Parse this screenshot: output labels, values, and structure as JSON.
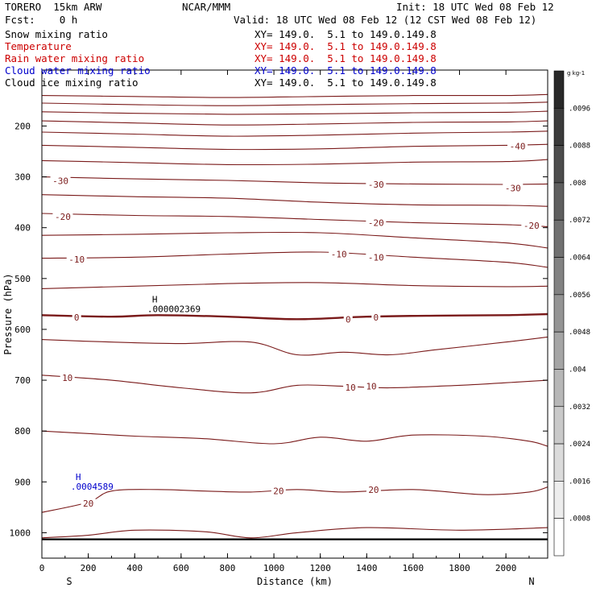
{
  "header": {
    "model": "TORERO  15km ARW",
    "center": "NCAR/MMM",
    "init": "Init: 18 UTC Wed 08 Feb 12",
    "fcst": "Fcst:    0 h",
    "valid": "Valid: 18 UTC Wed 08 Feb 12 (12 CST Wed 08 Feb 12)"
  },
  "fields": [
    {
      "name": "Snow mixing ratio",
      "color": "#000000",
      "xy": "XY= 149.0.  5.1 to 149.0.149.8"
    },
    {
      "name": "Temperature",
      "color": "#cc0000",
      "xy": "XY= 149.0.  5.1 to 149.0.149.8"
    },
    {
      "name": "Rain water mixing ratio",
      "color": "#cc0000",
      "xy": "XY= 149.0.  5.1 to 149.0.149.8"
    },
    {
      "name": "Cloud water mixing ratio",
      "color": "#0000cc",
      "xy": "XY= 149.0.  5.1 to 149.0.149.8"
    },
    {
      "name": "Cloud ice mixing ratio",
      "color": "#000000",
      "xy": "XY= 149.0.  5.1 to 149.0.149.8"
    }
  ],
  "chart_data": {
    "type": "contour",
    "xlabel": "Distance (km)",
    "ylabel": "Pressure (hPa)",
    "xlim": [
      0,
      2180
    ],
    "ylim": [
      1050,
      90
    ],
    "xticks": [
      0,
      200,
      400,
      600,
      800,
      1000,
      1200,
      1400,
      1600,
      1800,
      2000
    ],
    "yticks": [
      200,
      300,
      400,
      500,
      600,
      700,
      800,
      900,
      1000
    ],
    "x_left_label": "S",
    "x_right_label": "N",
    "contour_color": "#7a1a1a",
    "temperature_contours": [
      {
        "pts": [
          [
            0,
            140
          ],
          [
            400,
            142
          ],
          [
            800,
            144
          ],
          [
            1200,
            142
          ],
          [
            1600,
            140
          ],
          [
            2000,
            140
          ],
          [
            2180,
            138
          ]
        ]
      },
      {
        "pts": [
          [
            0,
            155
          ],
          [
            400,
            158
          ],
          [
            800,
            160
          ],
          [
            1200,
            158
          ],
          [
            1600,
            156
          ],
          [
            2000,
            155
          ],
          [
            2180,
            153
          ]
        ]
      },
      {
        "pts": [
          [
            0,
            172
          ],
          [
            400,
            175
          ],
          [
            800,
            177
          ],
          [
            1200,
            176
          ],
          [
            1600,
            174
          ],
          [
            2000,
            173
          ],
          [
            2180,
            171
          ]
        ]
      },
      {
        "pts": [
          [
            0,
            190
          ],
          [
            400,
            194
          ],
          [
            800,
            198
          ],
          [
            1200,
            196
          ],
          [
            1600,
            193
          ],
          [
            2000,
            192
          ],
          [
            2180,
            190
          ]
        ]
      },
      {
        "pts": [
          [
            0,
            212
          ],
          [
            400,
            216
          ],
          [
            800,
            220
          ],
          [
            1200,
            218
          ],
          [
            1600,
            214
          ],
          [
            2000,
            212
          ],
          [
            2180,
            210
          ]
        ]
      },
      {
        "pts": [
          [
            0,
            238
          ],
          [
            400,
            242
          ],
          [
            800,
            246
          ],
          [
            1200,
            245
          ],
          [
            1600,
            240
          ],
          [
            2000,
            238
          ],
          [
            2180,
            236
          ]
        ]
      },
      {
        "pts": [
          [
            0,
            268
          ],
          [
            400,
            272
          ],
          [
            800,
            276
          ],
          [
            1200,
            275
          ],
          [
            1600,
            271
          ],
          [
            2000,
            270
          ],
          [
            2180,
            266
          ]
        ]
      },
      {
        "pts": [
          [
            0,
            300
          ],
          [
            400,
            304
          ],
          [
            800,
            307
          ],
          [
            1200,
            312
          ],
          [
            1600,
            314
          ],
          [
            2000,
            315
          ],
          [
            2180,
            314
          ]
        ]
      },
      {
        "pts": [
          [
            0,
            335
          ],
          [
            400,
            339
          ],
          [
            800,
            342
          ],
          [
            1200,
            350
          ],
          [
            1600,
            355
          ],
          [
            2000,
            356
          ],
          [
            2180,
            358
          ]
        ]
      },
      {
        "pts": [
          [
            0,
            372
          ],
          [
            400,
            376
          ],
          [
            800,
            378
          ],
          [
            1200,
            384
          ],
          [
            1600,
            390
          ],
          [
            2000,
            394
          ],
          [
            2180,
            398
          ]
        ]
      },
      {
        "pts": [
          [
            0,
            415
          ],
          [
            400,
            413
          ],
          [
            800,
            410
          ],
          [
            1200,
            410
          ],
          [
            1600,
            420
          ],
          [
            2000,
            430
          ],
          [
            2180,
            440
          ]
        ]
      },
      {
        "pts": [
          [
            0,
            460
          ],
          [
            400,
            458
          ],
          [
            800,
            452
          ],
          [
            1200,
            448
          ],
          [
            1600,
            458
          ],
          [
            2000,
            468
          ],
          [
            2180,
            478
          ]
        ]
      },
      {
        "pts": [
          [
            0,
            520
          ],
          [
            400,
            515
          ],
          [
            800,
            510
          ],
          [
            1200,
            508
          ],
          [
            1600,
            514
          ],
          [
            2000,
            516
          ],
          [
            2180,
            515
          ]
        ]
      },
      {
        "pts": [
          [
            0,
            572
          ],
          [
            300,
            575
          ],
          [
            500,
            572
          ],
          [
            800,
            575
          ],
          [
            1100,
            580
          ],
          [
            1400,
            575
          ],
          [
            1700,
            573
          ],
          [
            2000,
            572
          ],
          [
            2180,
            570
          ]
        ],
        "bold": true
      },
      {
        "pts": [
          [
            0,
            620
          ],
          [
            300,
            625
          ],
          [
            600,
            628
          ],
          [
            900,
            625
          ],
          [
            1100,
            650
          ],
          [
            1300,
            645
          ],
          [
            1500,
            650
          ],
          [
            1700,
            640
          ],
          [
            2000,
            625
          ],
          [
            2180,
            615
          ]
        ]
      },
      {
        "pts": [
          [
            0,
            690
          ],
          [
            300,
            700
          ],
          [
            600,
            715
          ],
          [
            900,
            725
          ],
          [
            1100,
            710
          ],
          [
            1300,
            712
          ],
          [
            1500,
            715
          ],
          [
            1800,
            710
          ],
          [
            2000,
            705
          ],
          [
            2180,
            700
          ]
        ]
      },
      {
        "pts": [
          [
            0,
            800
          ],
          [
            200,
            805
          ],
          [
            400,
            810
          ],
          [
            700,
            815
          ],
          [
            1000,
            825
          ],
          [
            1200,
            812
          ],
          [
            1400,
            820
          ],
          [
            1600,
            808
          ],
          [
            1900,
            810
          ],
          [
            2100,
            820
          ],
          [
            2180,
            830
          ]
        ]
      },
      {
        "pts": [
          [
            0,
            960
          ],
          [
            200,
            940
          ],
          [
            300,
            918
          ],
          [
            500,
            915
          ],
          [
            700,
            918
          ],
          [
            900,
            920
          ],
          [
            1100,
            915
          ],
          [
            1300,
            920
          ],
          [
            1600,
            915
          ],
          [
            1900,
            925
          ],
          [
            2100,
            920
          ],
          [
            2180,
            910
          ]
        ]
      },
      {
        "pts": [
          [
            0,
            1010
          ],
          [
            200,
            1005
          ],
          [
            400,
            995
          ],
          [
            700,
            998
          ],
          [
            900,
            1010
          ],
          [
            1100,
            1000
          ],
          [
            1400,
            990
          ],
          [
            1800,
            995
          ],
          [
            2180,
            990
          ]
        ]
      }
    ],
    "surface_line": {
      "pts": [
        [
          0,
          1013
        ],
        [
          2180,
          1013
        ]
      ]
    },
    "contour_labels": [
      {
        "text": "-40",
        "x": 2050,
        "y": 240
      },
      {
        "text": "-30",
        "x": 80,
        "y": 308
      },
      {
        "text": "-30",
        "x": 1440,
        "y": 315
      },
      {
        "text": "-30",
        "x": 2030,
        "y": 322
      },
      {
        "text": "-20",
        "x": 90,
        "y": 378
      },
      {
        "text": "-20",
        "x": 1440,
        "y": 390
      },
      {
        "text": "-20",
        "x": 2110,
        "y": 396
      },
      {
        "text": "-10",
        "x": 150,
        "y": 462
      },
      {
        "text": "-10",
        "x": 1280,
        "y": 452
      },
      {
        "text": "-10",
        "x": 1440,
        "y": 458
      },
      {
        "text": "0",
        "x": 150,
        "y": 576
      },
      {
        "text": "0",
        "x": 1320,
        "y": 580
      },
      {
        "text": "0",
        "x": 1440,
        "y": 576
      },
      {
        "text": "10",
        "x": 110,
        "y": 695
      },
      {
        "text": "10",
        "x": 1330,
        "y": 714
      },
      {
        "text": "10",
        "x": 1420,
        "y": 712
      },
      {
        "text": "20",
        "x": 200,
        "y": 942
      },
      {
        "text": "20",
        "x": 1020,
        "y": 918
      },
      {
        "text": "20",
        "x": 1430,
        "y": 915
      }
    ],
    "max_markers": [
      {
        "symbol": "H",
        "value": ".000002369",
        "x": 510,
        "y": 547,
        "color": "#000000"
      },
      {
        "symbol": "H",
        "value": ".0004589",
        "x": 180,
        "y": 896,
        "color": "#0000cc"
      }
    ],
    "colorbar": {
      "unit": "g kg-1",
      "ticks": [
        ".0096",
        ".0088",
        ".008",
        ".0072",
        ".0064",
        ".0056",
        ".0048",
        ".004",
        ".0032",
        ".0024",
        ".0016",
        ".0008"
      ],
      "levels": 13
    }
  }
}
